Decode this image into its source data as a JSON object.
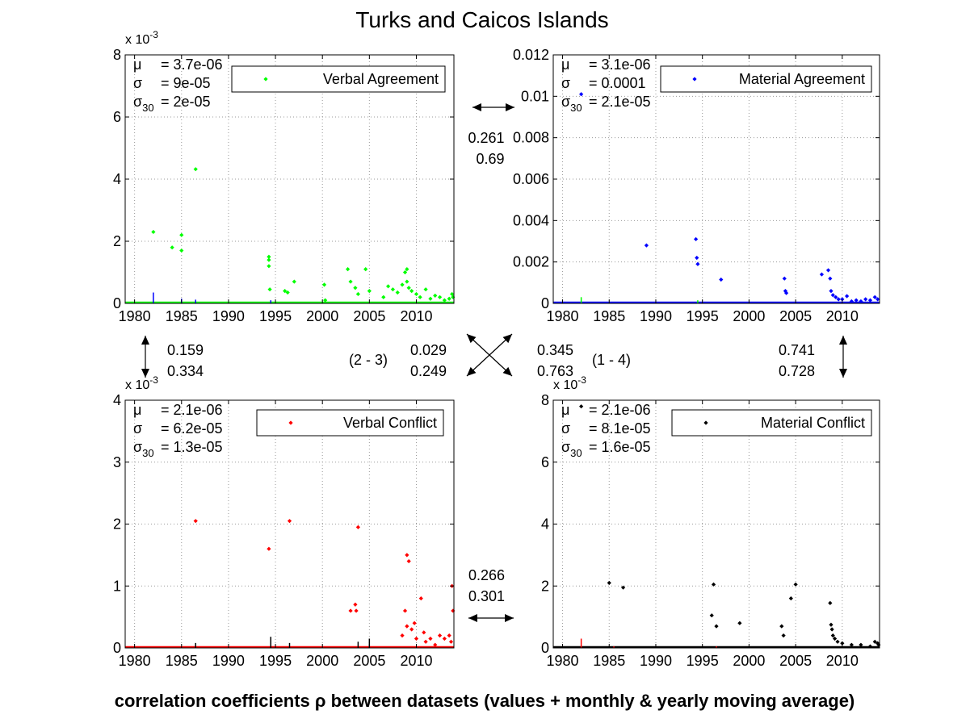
{
  "figure": {
    "title": "Turks and Caicos Islands",
    "footer": "correlation coefficients ρ between datasets (values + monthly & yearly moving average)"
  },
  "correlations": {
    "top": [
      "0.261",
      "0.69"
    ],
    "left": [
      "0.159",
      "0.334"
    ],
    "diag_2_3_label": "(2 - 3)",
    "diag_2_3": [
      "0.029",
      "0.249"
    ],
    "diag_1_4": [
      "0.345",
      "0.763"
    ],
    "diag_1_4_label": "(1 - 4)",
    "right": [
      "0.741",
      "0.728"
    ],
    "bottom": [
      "0.266",
      "0.301"
    ]
  },
  "chart_data": [
    {
      "type": "scatter",
      "title": "Verbal Agreement",
      "legend": "Verbal Agreement",
      "legend_position": "top-right",
      "color": "#00ff00",
      "exponent_label": "x 10",
      "exponent_sup": "-3",
      "xlim": [
        1979,
        2014
      ],
      "ylim": [
        0,
        8
      ],
      "xticks": [
        1980,
        1985,
        1990,
        1995,
        2000,
        2005,
        2010
      ],
      "yticks": [
        0,
        2,
        4,
        6,
        8
      ],
      "ytick_labels": [
        "0",
        "2",
        "4",
        "6",
        "8"
      ],
      "grid": true,
      "stats": {
        "mu": "= 3.7e-06",
        "sigma": "= 9e-05",
        "sigma30": "= 2e-05"
      },
      "points": [
        [
          1982,
          2.3
        ],
        [
          1984,
          1.8
        ],
        [
          1985,
          2.2
        ],
        [
          1985,
          1.7
        ],
        [
          1986.5,
          4.32
        ],
        [
          1994.3,
          1.5
        ],
        [
          1994.3,
          1.4
        ],
        [
          1994.3,
          1.2
        ],
        [
          1994.4,
          0.45
        ],
        [
          1996,
          0.4
        ],
        [
          1996.3,
          0.35
        ],
        [
          1997,
          0.7
        ],
        [
          2000.2,
          0.6
        ],
        [
          2000.3,
          0.1
        ],
        [
          2002.7,
          1.1
        ],
        [
          2003,
          0.7
        ],
        [
          2003.5,
          0.5
        ],
        [
          2003.8,
          0.3
        ],
        [
          2004.6,
          1.1
        ],
        [
          2005,
          0.4
        ],
        [
          2006.5,
          0.2
        ],
        [
          2007,
          0.55
        ],
        [
          2007.5,
          0.45
        ],
        [
          2008,
          0.35
        ],
        [
          2008.5,
          0.6
        ],
        [
          2008.8,
          1.0
        ],
        [
          2009,
          1.1
        ],
        [
          2009,
          0.7
        ],
        [
          2009.2,
          0.5
        ],
        [
          2009.5,
          0.4
        ],
        [
          2010,
          0.3
        ],
        [
          2010.4,
          0.2
        ],
        [
          2011,
          0.45
        ],
        [
          2011.5,
          0.15
        ],
        [
          2012,
          0.25
        ],
        [
          2012.5,
          0.2
        ],
        [
          2013,
          0.1
        ],
        [
          2013.5,
          0.15
        ],
        [
          2013.8,
          0.3
        ],
        [
          2013.9,
          0.2
        ]
      ],
      "spikes": [
        {
          "x": 1982,
          "y": 0.35,
          "color": "#0000ff"
        },
        {
          "x": 1985,
          "y": 0.15,
          "color": "#0000ff"
        },
        {
          "x": 1986.5,
          "y": 0.12,
          "color": "#0000ff"
        },
        {
          "x": 1994.5,
          "y": 0.1,
          "color": "#0000ff"
        }
      ]
    },
    {
      "type": "scatter",
      "title": "Material Agreement",
      "legend": "Material Agreement",
      "legend_position": "top-right",
      "color": "#0000ff",
      "xlim": [
        1979,
        2014
      ],
      "ylim": [
        0,
        0.012
      ],
      "xticks": [
        1980,
        1985,
        1990,
        1995,
        2000,
        2005,
        2010
      ],
      "yticks": [
        0,
        0.002,
        0.004,
        0.006,
        0.008,
        0.01,
        0.012
      ],
      "ytick_labels": [
        "0",
        "0.002",
        "0.004",
        "0.006",
        "0.008",
        "0.01",
        "0.012"
      ],
      "grid": true,
      "stats": {
        "mu": "= 3.1e-06",
        "sigma": "= 0.0001",
        "sigma30": "= 2.1e-05"
      },
      "points": [
        [
          1982,
          0.0101
        ],
        [
          1989,
          0.0028
        ],
        [
          1994.3,
          0.0031
        ],
        [
          1994.4,
          0.0022
        ],
        [
          1994.5,
          0.0019
        ],
        [
          1997,
          0.00115
        ],
        [
          2003.8,
          0.0012
        ],
        [
          2003.9,
          0.0006
        ],
        [
          2004,
          0.0005
        ],
        [
          2007.8,
          0.0014
        ],
        [
          2008.5,
          0.0016
        ],
        [
          2008.7,
          0.0012
        ],
        [
          2008.8,
          0.0006
        ],
        [
          2009,
          0.0004
        ],
        [
          2009.3,
          0.0003
        ],
        [
          2009.6,
          0.0002
        ],
        [
          2010,
          0.0002
        ],
        [
          2010.5,
          0.00035
        ],
        [
          2011,
          0.0001
        ],
        [
          2011.5,
          0.00015
        ],
        [
          2012,
          0.0001
        ],
        [
          2012.5,
          0.0002
        ],
        [
          2013,
          0.00015
        ],
        [
          2013.5,
          0.0003
        ],
        [
          2013.8,
          0.0002
        ]
      ],
      "spikes": [
        {
          "x": 1982,
          "y": 0.0003,
          "color": "#00ff00"
        },
        {
          "x": 1994.5,
          "y": 0.00015,
          "color": "#00ff00"
        }
      ]
    },
    {
      "type": "scatter",
      "title": "Verbal Conflict",
      "legend": "Verbal Conflict",
      "legend_position": "top-right",
      "color": "#ff0000",
      "exponent_label": "x 10",
      "exponent_sup": "-3",
      "xlim": [
        1979,
        2014
      ],
      "ylim": [
        0,
        4
      ],
      "xticks": [
        1980,
        1985,
        1990,
        1995,
        2000,
        2005,
        2010
      ],
      "yticks": [
        0,
        1,
        2,
        3,
        4
      ],
      "ytick_labels": [
        "0",
        "1",
        "2",
        "3",
        "4"
      ],
      "grid": true,
      "stats": {
        "mu": "= 2.1e-06",
        "sigma": "= 6.2e-05",
        "sigma30": "= 1.3e-05"
      },
      "points": [
        [
          1986.5,
          2.05
        ],
        [
          1994.3,
          1.6
        ],
        [
          1996.5,
          2.05
        ],
        [
          2003,
          0.6
        ],
        [
          2003.5,
          0.7
        ],
        [
          2003.6,
          0.6
        ],
        [
          2003.8,
          1.95
        ],
        [
          2008.5,
          0.2
        ],
        [
          2008.8,
          0.6
        ],
        [
          2009,
          1.5
        ],
        [
          2009.2,
          1.4
        ],
        [
          2009,
          0.35
        ],
        [
          2009.5,
          0.3
        ],
        [
          2009.8,
          0.4
        ],
        [
          2010,
          0.15
        ],
        [
          2010.5,
          0.8
        ],
        [
          2010.8,
          0.25
        ],
        [
          2011,
          0.1
        ],
        [
          2011.5,
          0.15
        ],
        [
          2012,
          0.05
        ],
        [
          2012.5,
          0.2
        ],
        [
          2013,
          0.15
        ],
        [
          2013.5,
          0.2
        ],
        [
          2013.8,
          1.0
        ],
        [
          2013.9,
          0.6
        ],
        [
          2013.7,
          0.1
        ]
      ],
      "spikes": [
        {
          "x": 1986.5,
          "y": 0.08,
          "color": "#000000"
        },
        {
          "x": 1994.5,
          "y": 0.18,
          "color": "#000000"
        },
        {
          "x": 1996.5,
          "y": 0.08,
          "color": "#000000"
        },
        {
          "x": 2003.8,
          "y": 0.1,
          "color": "#000000"
        },
        {
          "x": 2005,
          "y": 0.15,
          "color": "#000000"
        }
      ]
    },
    {
      "type": "scatter",
      "title": "Material Conflict",
      "legend": "Material Conflict",
      "legend_position": "top-right",
      "color": "#000000",
      "exponent_label": "x 10",
      "exponent_sup": "-3",
      "xlim": [
        1979,
        2014
      ],
      "ylim": [
        0,
        8
      ],
      "xticks": [
        1980,
        1985,
        1990,
        1995,
        2000,
        2005,
        2010
      ],
      "yticks": [
        0,
        2,
        4,
        6,
        8
      ],
      "ytick_labels": [
        "0",
        "2",
        "4",
        "6",
        "8"
      ],
      "grid": true,
      "stats": {
        "mu": "= 2.1e-06",
        "sigma": "= 8.1e-05",
        "sigma30": "= 1.6e-05"
      },
      "points": [
        [
          1982,
          7.8
        ],
        [
          1985,
          2.1
        ],
        [
          1986.5,
          1.95
        ],
        [
          1996.2,
          2.05
        ],
        [
          1996,
          1.05
        ],
        [
          1996.5,
          0.7
        ],
        [
          1999,
          0.8
        ],
        [
          2003.5,
          0.7
        ],
        [
          2003.7,
          0.4
        ],
        [
          2004.5,
          1.6
        ],
        [
          2005,
          2.05
        ],
        [
          2008.7,
          1.45
        ],
        [
          2008.8,
          0.75
        ],
        [
          2008.9,
          0.6
        ],
        [
          2009,
          0.4
        ],
        [
          2009.2,
          0.3
        ],
        [
          2009.5,
          0.2
        ],
        [
          2010,
          0.15
        ],
        [
          2011,
          0.1
        ],
        [
          2012,
          0.1
        ],
        [
          2013,
          0.05
        ],
        [
          2013.5,
          0.2
        ],
        [
          2013.8,
          0.15
        ],
        [
          2013.9,
          0.1
        ]
      ],
      "spikes": [
        {
          "x": 1982,
          "y": 0.3,
          "color": "#ff0000"
        },
        {
          "x": 1985.5,
          "y": 0.05,
          "color": "#ff0000"
        },
        {
          "x": 1996.5,
          "y": 0.05,
          "color": "#ff0000"
        }
      ]
    }
  ]
}
